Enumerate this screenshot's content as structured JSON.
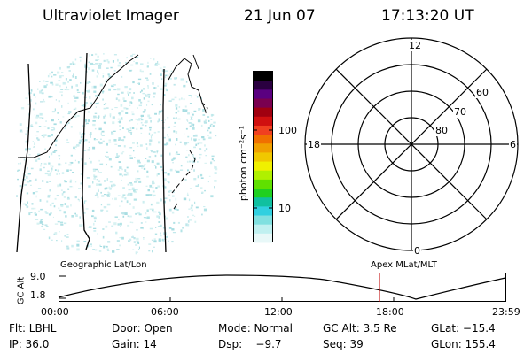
{
  "header": {
    "title": "Ultraviolet Imager",
    "date": "21 Jun 07",
    "time": "17:13:20 UT"
  },
  "colorbar": {
    "label": "photon cm⁻²s⁻¹",
    "ticks": [
      "100",
      "10"
    ],
    "colors": [
      "#000000",
      "#2a0040",
      "#5a0080",
      "#7a0050",
      "#a00010",
      "#d01010",
      "#f04020",
      "#f07000",
      "#f0a000",
      "#f0c800",
      "#f0f000",
      "#b0f000",
      "#60e000",
      "#20d020",
      "#10c0a0",
      "#30d0e0",
      "#80e0e0",
      "#c0f0f0",
      "#e8f8f8"
    ]
  },
  "polar": {
    "mlt_labels": {
      "top": "12",
      "left": "18",
      "right": "6",
      "bottom": "0"
    },
    "lat_labels": [
      "60",
      "70",
      "80"
    ]
  },
  "timeline": {
    "y_title": "GC Alt",
    "y_max": "9.0",
    "y_min": "1.8",
    "left_label": "Geographic Lat/Lon",
    "right_label": "Apex MLat/MLT",
    "x_ticks": [
      "00:00",
      "06:00",
      "12:00",
      "18:00",
      "23:59"
    ],
    "current_time_fraction": 0.718,
    "marker_color": "#c00000"
  },
  "info": {
    "filter": "Flt: LBHL",
    "door": "Door: Open",
    "mode": "Mode: Normal",
    "gc_alt": "GC Alt: 3.5 Re",
    "glat": "GLat: −15.4",
    "ip": "IP: 36.0",
    "gain": "Gain: 14",
    "dsp": "Dsp:    −9.7",
    "seq": "Seq: 39",
    "glon": "GLon: 155.4"
  }
}
